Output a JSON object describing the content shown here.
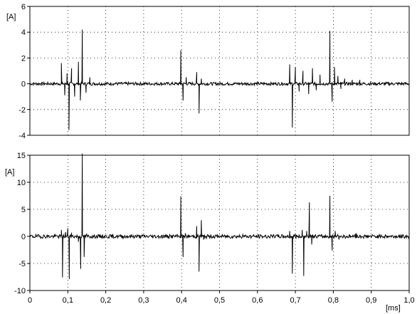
{
  "chart_data": [
    {
      "type": "line",
      "title": "",
      "xlabel": "",
      "ylabel": "[A]",
      "xlim": [
        0,
        1.0
      ],
      "ylim": [
        -4,
        6
      ],
      "yticks": [
        "-4",
        "-2",
        "0",
        "2",
        "4",
        "6"
      ],
      "grid": "dotted",
      "series": [
        {
          "color": "#000000",
          "spikes": [
            [
              0.083,
              1.6
            ],
            [
              0.092,
              -0.9
            ],
            [
              0.098,
              0.8
            ],
            [
              0.103,
              -3.6
            ],
            [
              0.11,
              1.2
            ],
            [
              0.118,
              -1.0
            ],
            [
              0.128,
              1.7
            ],
            [
              0.133,
              -1.3
            ],
            [
              0.138,
              4.2
            ],
            [
              0.148,
              -0.7
            ],
            [
              0.158,
              0.5
            ],
            [
              0.398,
              2.6
            ],
            [
              0.404,
              -1.3
            ],
            [
              0.412,
              0.5
            ],
            [
              0.44,
              0.9
            ],
            [
              0.446,
              -2.3
            ],
            [
              0.452,
              0.4
            ],
            [
              0.685,
              1.5
            ],
            [
              0.692,
              -3.4
            ],
            [
              0.7,
              1.3
            ],
            [
              0.71,
              -0.6
            ],
            [
              0.72,
              1.0
            ],
            [
              0.735,
              -0.8
            ],
            [
              0.745,
              1.2
            ],
            [
              0.755,
              -0.5
            ],
            [
              0.765,
              0.7
            ],
            [
              0.791,
              4.1
            ],
            [
              0.797,
              -1.4
            ],
            [
              0.803,
              1.3
            ],
            [
              0.812,
              0.6
            ],
            [
              0.82,
              -0.4
            ],
            [
              0.83,
              0.4
            ],
            [
              0.85,
              0.3
            ],
            [
              0.87,
              0.3
            ]
          ]
        }
      ]
    },
    {
      "type": "line",
      "title": "",
      "xlabel": "[ms]",
      "ylabel": "[A]",
      "xlim": [
        0,
        1.0
      ],
      "ylim": [
        -10,
        15
      ],
      "xticks": [
        "0",
        "0,1",
        "0,2",
        "0,3",
        "0,4",
        "0,5",
        "0,6",
        "0,7",
        "0,8",
        "0,9",
        "1,0"
      ],
      "yticks": [
        "-10",
        "-5",
        "0",
        "5",
        "10",
        "15"
      ],
      "grid": "dotted",
      "series": [
        {
          "color": "#000000",
          "spikes": [
            [
              0.083,
              1.2
            ],
            [
              0.086,
              -7.6
            ],
            [
              0.094,
              0.8
            ],
            [
              0.1,
              1.5
            ],
            [
              0.104,
              -7.9
            ],
            [
              0.11,
              0.7
            ],
            [
              0.128,
              -1.0
            ],
            [
              0.134,
              -6.0
            ],
            [
              0.138,
              15.3
            ],
            [
              0.143,
              -3.8
            ],
            [
              0.15,
              0.5
            ],
            [
              0.398,
              7.4
            ],
            [
              0.404,
              -3.8
            ],
            [
              0.41,
              0.6
            ],
            [
              0.44,
              1.9
            ],
            [
              0.446,
              -6.5
            ],
            [
              0.452,
              3.0
            ],
            [
              0.458,
              -0.6
            ],
            [
              0.685,
              1.0
            ],
            [
              0.692,
              -6.9
            ],
            [
              0.7,
              0.5
            ],
            [
              0.718,
              1.2
            ],
            [
              0.722,
              -7.3
            ],
            [
              0.73,
              1.0
            ],
            [
              0.737,
              6.3
            ],
            [
              0.743,
              -1.5
            ],
            [
              0.791,
              7.5
            ],
            [
              0.797,
              -2.6
            ],
            [
              0.805,
              1.0
            ],
            [
              0.815,
              -0.6
            ],
            [
              0.86,
              0.6
            ]
          ]
        }
      ]
    }
  ]
}
